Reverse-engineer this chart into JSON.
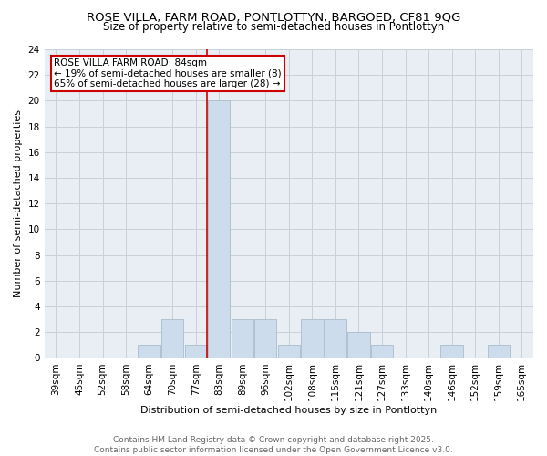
{
  "title_line1": "ROSE VILLA, FARM ROAD, PONTLOTTYN, BARGOED, CF81 9QG",
  "title_line2": "Size of property relative to semi-detached houses in Pontlottyn",
  "xlabel": "Distribution of semi-detached houses by size in Pontlottyn",
  "ylabel": "Number of semi-detached properties",
  "categories": [
    "39sqm",
    "45sqm",
    "52sqm",
    "58sqm",
    "64sqm",
    "70sqm",
    "77sqm",
    "83sqm",
    "89sqm",
    "96sqm",
    "102sqm",
    "108sqm",
    "115sqm",
    "121sqm",
    "127sqm",
    "133sqm",
    "140sqm",
    "146sqm",
    "152sqm",
    "159sqm",
    "165sqm"
  ],
  "values": [
    0,
    0,
    0,
    0,
    1,
    3,
    1,
    20,
    3,
    3,
    1,
    3,
    3,
    2,
    1,
    0,
    0,
    1,
    0,
    1,
    0
  ],
  "bar_color": "#ccdcec",
  "bar_edge_color": "#aabccc",
  "highlight_index": 7,
  "highlight_line_color": "#cc0000",
  "box_color": "#cc0000",
  "property_label": "ROSE VILLA FARM ROAD: 84sqm",
  "smaller_pct": 19,
  "smaller_count": 8,
  "larger_pct": 65,
  "larger_count": 28,
  "ylim": [
    0,
    24
  ],
  "yticks": [
    0,
    2,
    4,
    6,
    8,
    10,
    12,
    14,
    16,
    18,
    20,
    22,
    24
  ],
  "footnote_line1": "Contains HM Land Registry data © Crown copyright and database right 2025.",
  "footnote_line2": "Contains public sector information licensed under the Open Government Licence v3.0.",
  "bg_color": "#ffffff",
  "plot_bg_color": "#e8eef4",
  "grid_color": "#c8d0d8",
  "title_fontsize": 9.5,
  "subtitle_fontsize": 8.5,
  "axis_label_fontsize": 8,
  "tick_fontsize": 7.5,
  "footnote_fontsize": 6.5,
  "annotation_fontsize": 7.5
}
